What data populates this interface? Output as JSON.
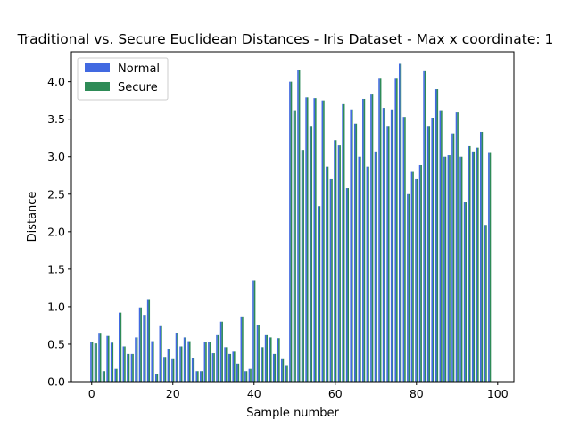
{
  "chart_data": {
    "type": "bar",
    "title": "Traditional vs. Secure Euclidean Distances - Iris Dataset - Max x coordinate: 1",
    "xlabel": "Sample number",
    "ylabel": "Distance",
    "xlim": [
      -5,
      104
    ],
    "ylim": [
      0,
      4.4
    ],
    "xticks": [
      "0",
      "20",
      "40",
      "60",
      "80",
      "100"
    ],
    "yticks": [
      "0.0",
      "0.5",
      "1.0",
      "1.5",
      "2.0",
      "2.5",
      "3.0",
      "3.5",
      "4.0"
    ],
    "legend_position": "upper-left",
    "grid": false,
    "x": [
      0,
      1,
      2,
      3,
      4,
      5,
      6,
      7,
      8,
      9,
      10,
      11,
      12,
      13,
      14,
      15,
      16,
      17,
      18,
      19,
      20,
      21,
      22,
      23,
      24,
      25,
      26,
      27,
      28,
      29,
      30,
      31,
      32,
      33,
      34,
      35,
      36,
      37,
      38,
      39,
      40,
      41,
      42,
      43,
      44,
      45,
      46,
      47,
      48,
      49,
      50,
      51,
      52,
      53,
      54,
      55,
      56,
      57,
      58,
      59,
      60,
      61,
      62,
      63,
      64,
      65,
      66,
      67,
      68,
      69,
      70,
      71,
      72,
      73,
      74,
      75,
      76,
      77,
      78,
      79,
      80,
      81,
      82,
      83,
      84,
      85,
      86,
      87,
      88,
      89,
      90,
      91,
      92,
      93,
      94,
      95,
      96,
      97,
      98
    ],
    "series": [
      {
        "name": "Normal",
        "color": "#4169e1",
        "values": [
          0.53,
          0.51,
          0.64,
          0.14,
          0.61,
          0.52,
          0.17,
          0.92,
          0.47,
          0.37,
          0.37,
          0.59,
          0.99,
          0.89,
          1.1,
          0.54,
          0.1,
          0.74,
          0.33,
          0.44,
          0.3,
          0.65,
          0.47,
          0.59,
          0.54,
          0.31,
          0.14,
          0.14,
          0.53,
          0.53,
          0.38,
          0.62,
          0.8,
          0.46,
          0.37,
          0.4,
          0.24,
          0.87,
          0.14,
          0.17,
          1.35,
          0.76,
          0.46,
          0.62,
          0.59,
          0.37,
          0.58,
          0.3,
          0.22,
          4.0,
          3.62,
          4.16,
          3.09,
          3.79,
          3.41,
          3.78,
          2.34,
          3.75,
          2.87,
          2.7,
          3.22,
          3.15,
          3.7,
          2.58,
          3.63,
          3.44,
          3.0,
          3.77,
          2.87,
          3.84,
          3.07,
          4.04,
          3.65,
          3.41,
          3.63,
          4.04,
          4.24,
          3.53,
          2.5,
          2.8,
          2.7,
          2.89,
          4.14,
          3.41,
          3.52,
          3.9,
          3.62,
          3.0,
          3.02,
          3.31,
          3.59,
          3.0,
          2.39,
          3.14,
          3.07,
          3.12,
          3.33,
          2.09,
          3.05
        ]
      },
      {
        "name": "Secure",
        "color": "#2e8b57",
        "values": [
          0.53,
          0.51,
          0.64,
          0.14,
          0.61,
          0.52,
          0.17,
          0.92,
          0.47,
          0.37,
          0.37,
          0.59,
          0.99,
          0.89,
          1.1,
          0.54,
          0.1,
          0.74,
          0.33,
          0.44,
          0.3,
          0.65,
          0.47,
          0.59,
          0.54,
          0.31,
          0.14,
          0.14,
          0.53,
          0.53,
          0.38,
          0.62,
          0.8,
          0.46,
          0.37,
          0.4,
          0.24,
          0.87,
          0.14,
          0.17,
          1.35,
          0.76,
          0.46,
          0.62,
          0.59,
          0.37,
          0.58,
          0.3,
          0.22,
          4.0,
          3.62,
          4.16,
          3.09,
          3.79,
          3.41,
          3.78,
          2.34,
          3.75,
          2.87,
          2.7,
          3.22,
          3.15,
          3.7,
          2.58,
          3.63,
          3.44,
          3.0,
          3.77,
          2.87,
          3.84,
          3.07,
          4.04,
          3.65,
          3.41,
          3.63,
          4.04,
          4.24,
          3.53,
          2.5,
          2.8,
          2.7,
          2.89,
          4.14,
          3.41,
          3.52,
          3.9,
          3.62,
          3.0,
          3.02,
          3.31,
          3.59,
          3.0,
          2.39,
          3.14,
          3.07,
          3.12,
          3.33,
          2.09,
          3.05
        ]
      }
    ]
  }
}
